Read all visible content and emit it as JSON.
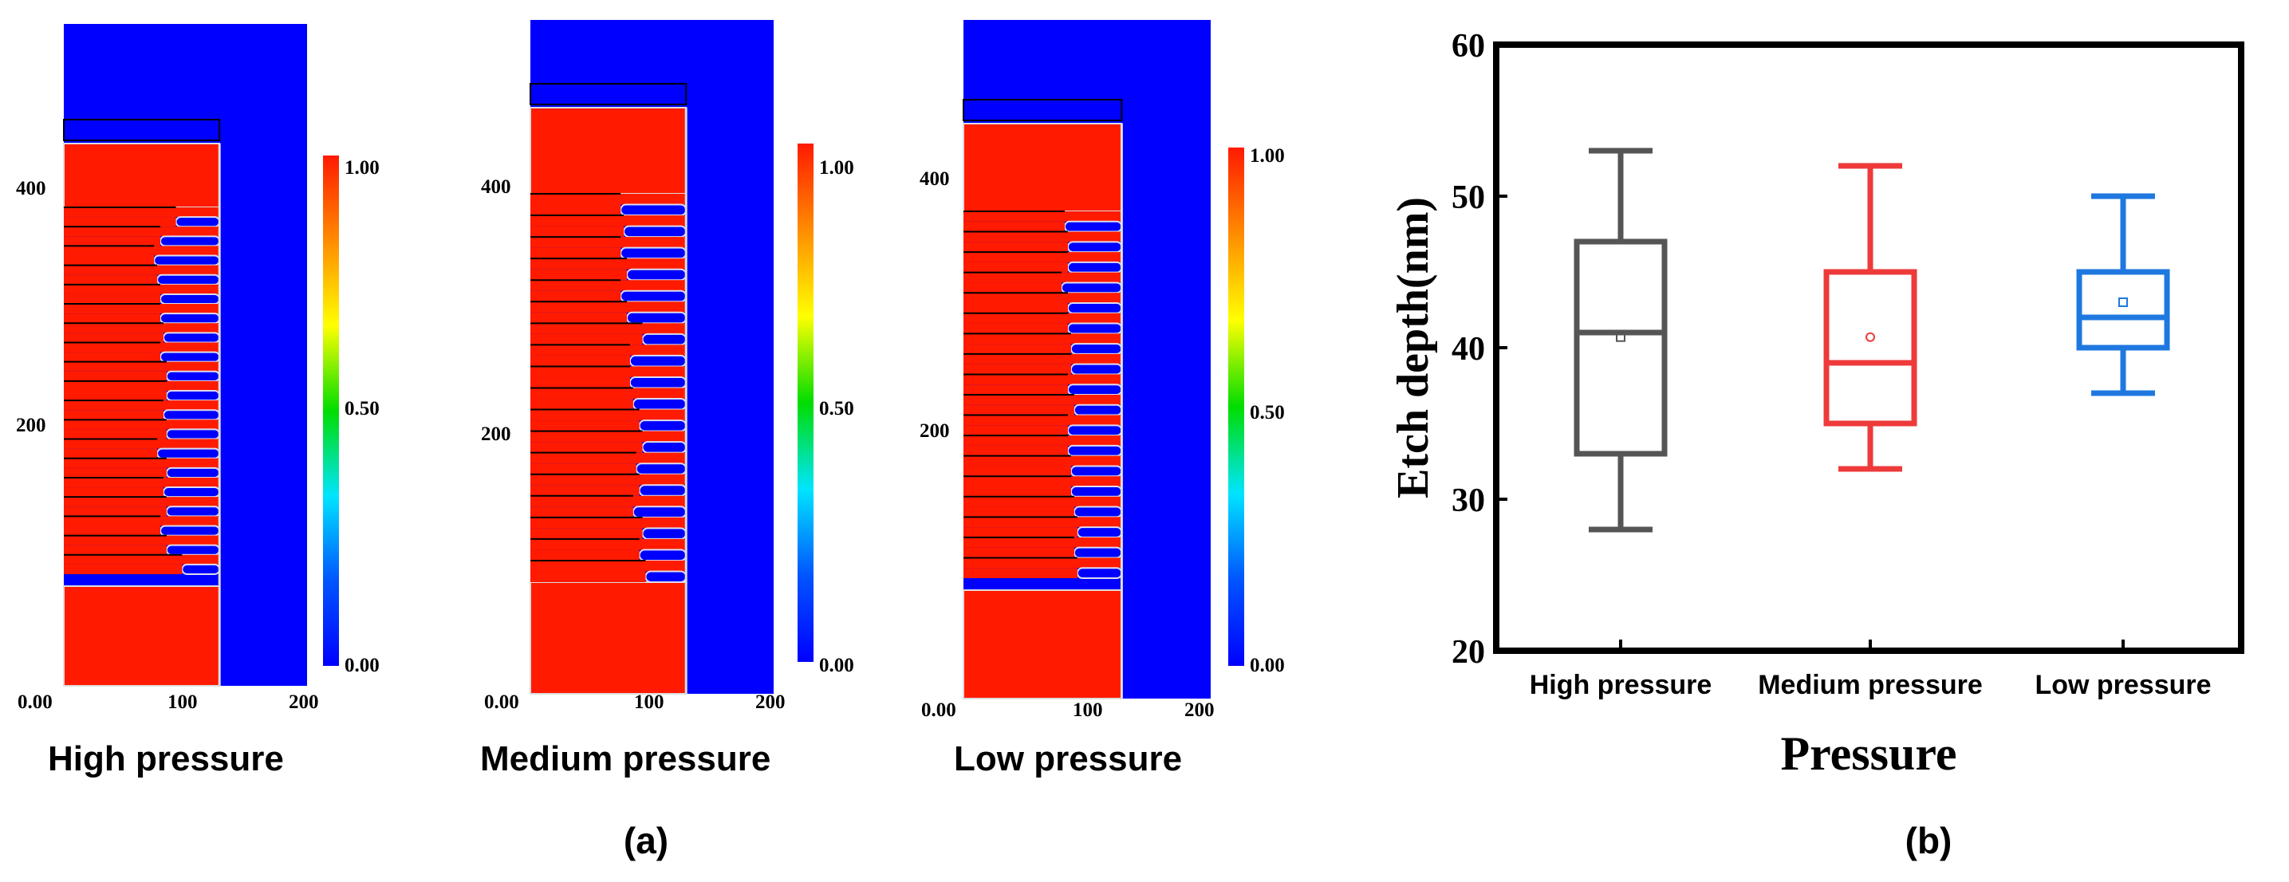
{
  "panel_a": {
    "label": "(a)",
    "colorbar_ticks": [
      "1.00",
      "0.50",
      "0.00"
    ],
    "colorbar_colors": [
      "#ff1a00",
      "#ff8c00",
      "#ffff00",
      "#00dd00",
      "#00e5ff",
      "#0055ff",
      "#0000ff"
    ],
    "material_color": "#ff1a00",
    "void_color": "#0000ff",
    "simulations": [
      {
        "title": "High pressure",
        "x_ticks": [
          "0.00",
          "100",
          "200"
        ],
        "y_ticks": [
          "400",
          "200"
        ],
        "fin_count": 19,
        "fin_tip_depths": [
          0.72,
          0.62,
          0.58,
          0.6,
          0.62,
          0.62,
          0.64,
          0.62,
          0.66,
          0.66,
          0.64,
          0.66,
          0.6,
          0.66,
          0.64,
          0.66,
          0.62,
          0.66,
          0.76
        ]
      },
      {
        "title": "Medium pressure",
        "x_ticks": [
          "0.00",
          "100",
          "200"
        ],
        "y_ticks": [
          "400",
          "200"
        ],
        "fin_count": 18,
        "fin_tip_depths": [
          0.58,
          0.6,
          0.58,
          0.62,
          0.58,
          0.62,
          0.72,
          0.64,
          0.64,
          0.66,
          0.7,
          0.72,
          0.68,
          0.7,
          0.66,
          0.72,
          0.7,
          0.74
        ]
      },
      {
        "title": "Low pressure",
        "x_ticks": [
          "0.00",
          "100",
          "200"
        ],
        "y_ticks": [
          "400",
          "200"
        ],
        "fin_count": 18,
        "fin_tip_depths": [
          0.64,
          0.66,
          0.66,
          0.62,
          0.66,
          0.66,
          0.68,
          0.68,
          0.66,
          0.7,
          0.66,
          0.66,
          0.68,
          0.68,
          0.7,
          0.72,
          0.7,
          0.72
        ]
      }
    ]
  },
  "chart_data": {
    "type": "box",
    "panel_label": "(b)",
    "title": "",
    "xlabel": "Pressure",
    "ylabel": "Etch depth(nm)",
    "ylim": [
      20,
      60
    ],
    "y_ticks": [
      20,
      30,
      40,
      50,
      60
    ],
    "categories": [
      "High pressure",
      "Medium pressure",
      "Low pressure"
    ],
    "series": [
      {
        "name": "High pressure",
        "color": "#555555",
        "min": 28,
        "q1": 33,
        "median": 41,
        "q3": 47,
        "max": 53,
        "mean": 40.7
      },
      {
        "name": "Medium pressure",
        "color": "#ee3a3a",
        "min": 32,
        "q1": 35,
        "median": 39,
        "q3": 45,
        "max": 52,
        "mean": 40.7
      },
      {
        "name": "Low pressure",
        "color": "#1f78e0",
        "min": 37,
        "q1": 40,
        "median": 42,
        "q3": 45,
        "max": 50,
        "mean": 43
      }
    ]
  }
}
